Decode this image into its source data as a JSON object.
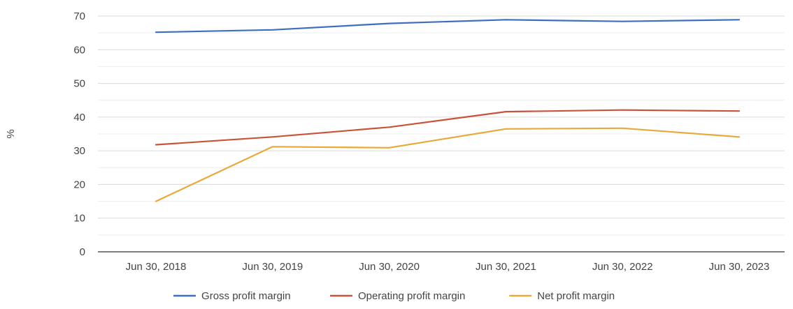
{
  "chart_data": {
    "type": "line",
    "title": "",
    "xlabel": "",
    "ylabel": "%",
    "categories": [
      "Jun 30, 2018",
      "Jun 30, 2019",
      "Jun 30, 2020",
      "Jun 30, 2021",
      "Jun 30, 2022",
      "Jun 30, 2023"
    ],
    "ylim": [
      0,
      70
    ],
    "yticks": [
      0,
      10,
      20,
      30,
      40,
      50,
      60,
      70
    ],
    "grid": true,
    "legend_position": "bottom",
    "series": [
      {
        "name": "Gross profit margin",
        "color": "#3f6ebf",
        "values": [
          65.2,
          65.9,
          67.8,
          68.9,
          68.4,
          68.9
        ]
      },
      {
        "name": "Operating profit margin",
        "color": "#c9533a",
        "values": [
          31.8,
          34.1,
          37.0,
          41.6,
          42.1,
          41.8
        ]
      },
      {
        "name": "Net profit margin",
        "color": "#e8a83a",
        "values": [
          15.0,
          31.2,
          30.9,
          36.5,
          36.7,
          34.1
        ]
      }
    ]
  }
}
